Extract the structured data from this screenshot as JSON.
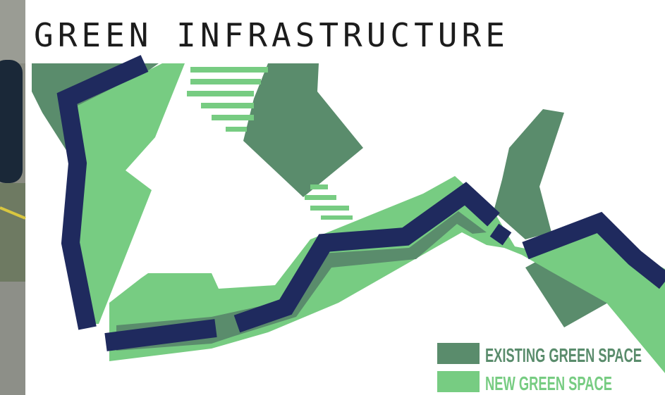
{
  "title": "GREEN INFRASTRUCTURE",
  "legend": [
    {
      "label": "EXISTING GREEN SPACE"
    },
    {
      "label": "NEW GREEN SPACE"
    }
  ]
}
